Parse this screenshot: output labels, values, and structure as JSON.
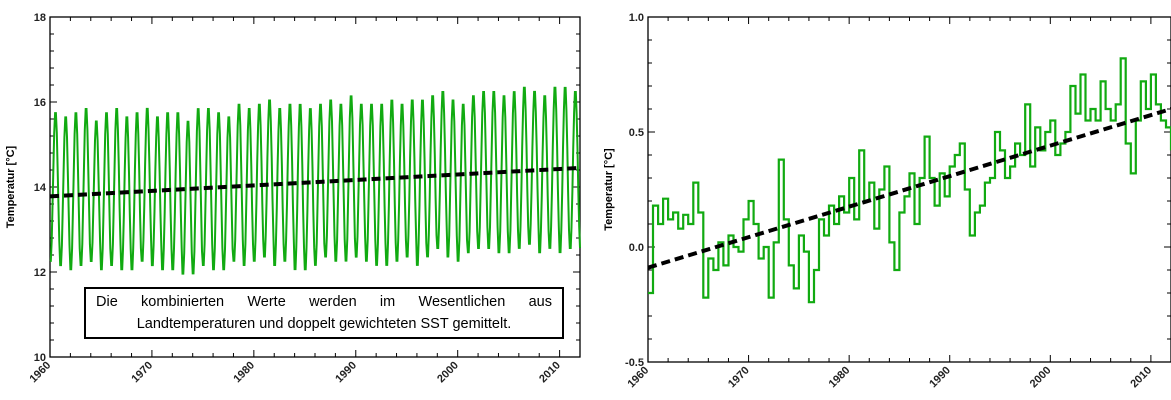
{
  "chart_data": [
    {
      "type": "line",
      "ylabel": "Temperatur [°C]",
      "xlim": [
        1960,
        2012
      ],
      "ylim": [
        10,
        18
      ],
      "x_ticks": [
        "1960",
        "1970",
        "1980",
        "1990",
        "2000",
        "2010"
      ],
      "y_ticks": [
        "10",
        "12",
        "14",
        "16",
        "18"
      ],
      "grid": false,
      "series": [
        {
          "color": "#11aa11",
          "style": "solid",
          "description_kind": "monthly seasonal cycle",
          "start_year": 1960,
          "end_year": 2012,
          "annual_peaks": [
            15.8,
            15.7,
            15.8,
            15.9,
            15.6,
            15.8,
            15.9,
            15.7,
            15.8,
            15.9,
            15.7,
            15.8,
            15.8,
            15.6,
            15.9,
            15.9,
            15.8,
            15.7,
            16.0,
            15.9,
            16.0,
            16.1,
            15.9,
            16.0,
            16.0,
            15.9,
            16.0,
            16.1,
            16.0,
            16.2,
            16.0,
            16.0,
            16.0,
            16.1,
            16.0,
            16.1,
            16.1,
            16.2,
            16.3,
            16.1,
            16.0,
            16.2,
            16.3,
            16.3,
            16.2,
            16.3,
            16.4,
            16.3,
            16.2,
            16.4,
            16.4,
            16.3,
            16.3
          ],
          "annual_troughs": [
            12.2,
            12.1,
            12.0,
            12.1,
            12.2,
            12.0,
            12.1,
            12.0,
            12.0,
            12.2,
            12.1,
            12.0,
            12.0,
            11.9,
            11.9,
            12.1,
            12.0,
            12.0,
            12.2,
            12.1,
            12.2,
            12.3,
            12.1,
            12.2,
            12.0,
            12.0,
            12.1,
            12.3,
            12.2,
            12.2,
            12.3,
            12.2,
            12.1,
            12.1,
            12.2,
            12.3,
            12.1,
            12.3,
            12.5,
            12.3,
            12.2,
            12.4,
            12.5,
            12.5,
            12.4,
            12.4,
            12.5,
            12.6,
            12.4,
            12.5,
            12.4,
            12.5,
            12.5
          ]
        },
        {
          "color": "#000000",
          "style": "dashed",
          "description_kind": "linear trend",
          "x": [
            1960,
            2012
          ],
          "y": [
            13.78,
            14.45
          ]
        }
      ]
    },
    {
      "type": "line",
      "ylabel": "Temperatur [°C]",
      "xlim": [
        1960,
        2012
      ],
      "ylim": [
        -0.5,
        1.0
      ],
      "x_ticks": [
        "1960",
        "1970",
        "1980",
        "1990",
        "2000",
        "2010"
      ],
      "y_ticks": [
        "-0.5",
        "0.0",
        "0.5",
        "1.0"
      ],
      "grid": false,
      "series": [
        {
          "color": "#11aa11",
          "style": "solid",
          "description_kind": "monthly anomaly",
          "x": [
            1960,
            1960.5,
            1961,
            1961.5,
            1962,
            1962.5,
            1963,
            1963.5,
            1964,
            1964.5,
            1965,
            1965.5,
            1966,
            1966.5,
            1967,
            1967.5,
            1968,
            1968.5,
            1969,
            1969.5,
            1970,
            1970.5,
            1971,
            1971.5,
            1972,
            1972.5,
            1973,
            1973.5,
            1974,
            1974.5,
            1975,
            1975.5,
            1976,
            1976.5,
            1977,
            1977.5,
            1978,
            1978.5,
            1979,
            1979.5,
            1980,
            1980.5,
            1981,
            1981.5,
            1982,
            1982.5,
            1983,
            1983.5,
            1984,
            1984.5,
            1985,
            1985.5,
            1986,
            1986.5,
            1987,
            1987.5,
            1988,
            1988.5,
            1989,
            1989.5,
            1990,
            1990.5,
            1991,
            1991.5,
            1992,
            1992.5,
            1993,
            1993.5,
            1994,
            1994.5,
            1995,
            1995.5,
            1996,
            1996.5,
            1997,
            1997.5,
            1998,
            1998.5,
            1999,
            1999.5,
            2000,
            2000.5,
            2001,
            2001.5,
            2002,
            2002.5,
            2003,
            2003.5,
            2004,
            2004.5,
            2005,
            2005.5,
            2006,
            2006.5,
            2007,
            2007.5,
            2008,
            2008.5,
            2009,
            2009.5,
            2010,
            2010.5,
            2011,
            2011.5,
            2012
          ],
          "y": [
            -0.2,
            0.18,
            0.1,
            0.21,
            0.12,
            0.15,
            0.08,
            0.14,
            0.1,
            0.28,
            0.15,
            -0.22,
            -0.05,
            -0.1,
            0.02,
            -0.08,
            0.05,
            0.0,
            -0.02,
            0.12,
            0.2,
            0.1,
            -0.05,
            0.0,
            -0.22,
            0.02,
            0.38,
            0.12,
            -0.08,
            -0.18,
            0.05,
            -0.02,
            -0.24,
            -0.1,
            0.12,
            0.05,
            0.18,
            0.1,
            0.22,
            0.15,
            0.3,
            0.12,
            0.42,
            0.2,
            0.28,
            0.08,
            0.25,
            0.35,
            0.02,
            -0.1,
            0.15,
            0.22,
            0.32,
            0.1,
            0.3,
            0.48,
            0.3,
            0.18,
            0.32,
            0.22,
            0.35,
            0.4,
            0.45,
            0.25,
            0.05,
            0.15,
            0.18,
            0.28,
            0.3,
            0.5,
            0.42,
            0.3,
            0.35,
            0.45,
            0.4,
            0.62,
            0.35,
            0.52,
            0.42,
            0.5,
            0.55,
            0.4,
            0.45,
            0.5,
            0.7,
            0.58,
            0.75,
            0.55,
            0.6,
            0.55,
            0.72,
            0.6,
            0.55,
            0.62,
            0.82,
            0.45,
            0.32,
            0.55,
            0.72,
            0.6,
            0.75,
            0.62,
            0.55,
            0.52,
            0.42
          ]
        },
        {
          "color": "#000000",
          "style": "dashed",
          "description_kind": "linear trend",
          "x": [
            1960,
            2012
          ],
          "y": [
            -0.09,
            0.6
          ]
        }
      ]
    }
  ],
  "annotation": {
    "line1": "Die kombinierten Werte werden im Wesentlichen aus",
    "line2": "Landtemperaturen und doppelt gewichteten SST gemittelt."
  }
}
